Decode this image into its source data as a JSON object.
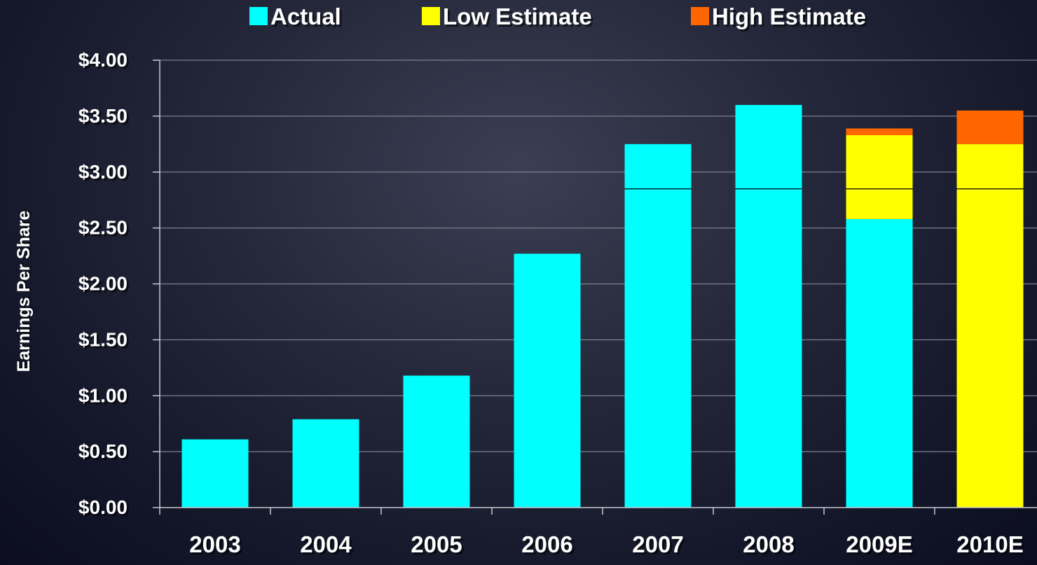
{
  "chart_data": {
    "type": "bar",
    "stacked": true,
    "categories": [
      "2003",
      "2004",
      "2005",
      "2006",
      "2007",
      "2008",
      "2009E",
      "2010E"
    ],
    "series": [
      {
        "name": "Actual",
        "color": "#00ffff",
        "values": [
          0.61,
          0.79,
          1.18,
          2.27,
          3.25,
          3.6,
          2.58,
          0
        ]
      },
      {
        "name": "Low Estimate",
        "color": "#ffff00",
        "values": [
          0,
          0,
          0,
          0,
          0,
          0,
          0.75,
          3.25
        ]
      },
      {
        "name": "High Estimate",
        "color": "#ff6600",
        "values": [
          0,
          0,
          0,
          0,
          0,
          0,
          0.06,
          0.3
        ]
      }
    ],
    "reference_line": 2.85,
    "ylabel": "Earnings Per Share",
    "ylim": [
      0,
      4
    ],
    "yticks": [
      "$0.00",
      "$0.50",
      "$1.00",
      "$1.50",
      "$2.00",
      "$2.50",
      "$3.00",
      "$3.50",
      "$4.00"
    ],
    "grid": true,
    "legend_position": "top"
  },
  "colors": {
    "grid": "#7c7f8e",
    "axis": "#c8c8d0",
    "reference_line": "#000000"
  }
}
